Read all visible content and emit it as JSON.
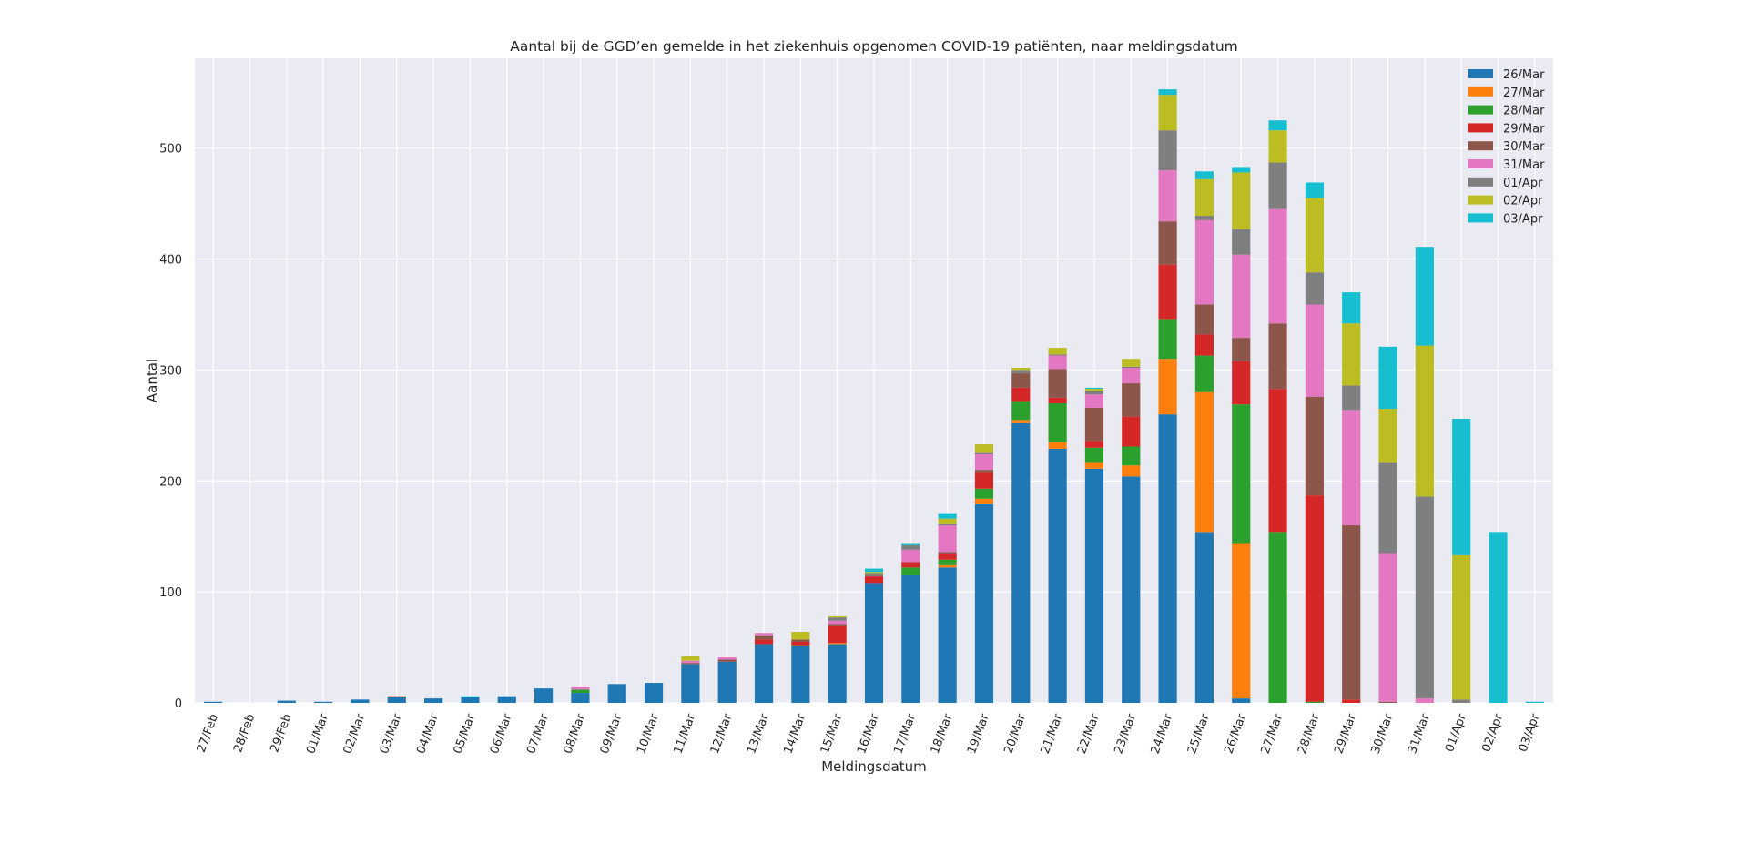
{
  "chart_data": {
    "type": "bar",
    "stacked": true,
    "title": "Aantal bij de GGD’en gemelde in het ziekenhuis opgenomen COVID-19 patiënten, naar meldingsdatum",
    "xlabel": "Meldingsdatum",
    "ylabel": "Aantal",
    "ylim": [
      0,
      581
    ],
    "yticks": [
      0,
      100,
      200,
      300,
      400,
      500
    ],
    "grid": true,
    "legend_position": "top-right",
    "categories": [
      "27/Feb",
      "28/Feb",
      "29/Feb",
      "01/Mar",
      "02/Mar",
      "03/Mar",
      "04/Mar",
      "05/Mar",
      "06/Mar",
      "07/Mar",
      "08/Mar",
      "09/Mar",
      "10/Mar",
      "11/Mar",
      "12/Mar",
      "13/Mar",
      "14/Mar",
      "15/Mar",
      "16/Mar",
      "17/Mar",
      "18/Mar",
      "19/Mar",
      "20/Mar",
      "21/Mar",
      "22/Mar",
      "23/Mar",
      "24/Mar",
      "25/Mar",
      "26/Mar",
      "27/Mar",
      "28/Mar",
      "29/Mar",
      "30/Mar",
      "31/Mar",
      "01/Apr",
      "02/Apr",
      "03/Apr"
    ],
    "series": [
      {
        "name": "26/Mar",
        "color": "#1f77b4",
        "values": [
          1,
          0,
          2,
          1,
          3,
          5,
          4,
          5,
          6,
          13,
          9,
          17,
          18,
          35,
          37,
          53,
          51,
          53,
          108,
          115,
          122,
          179,
          252,
          229,
          211,
          204,
          260,
          154,
          4,
          0,
          0,
          0,
          0,
          0,
          0,
          0,
          0
        ]
      },
      {
        "name": "27/Mar",
        "color": "#ff7f0e",
        "values": [
          0,
          0,
          0,
          0,
          0,
          0,
          0,
          0,
          0,
          0,
          0,
          0,
          0,
          0,
          0,
          0,
          0,
          1,
          0,
          0,
          2,
          5,
          3,
          6,
          6,
          10,
          50,
          126,
          140,
          0,
          0,
          0,
          0,
          0,
          0,
          0,
          0
        ]
      },
      {
        "name": "28/Mar",
        "color": "#2ca02c",
        "values": [
          0,
          0,
          0,
          0,
          0,
          0,
          0,
          0,
          0,
          0,
          3,
          0,
          0,
          0,
          0,
          0,
          1,
          0,
          0,
          7,
          5,
          9,
          17,
          35,
          13,
          17,
          36,
          33,
          125,
          154,
          1,
          0,
          0,
          0,
          0,
          0,
          0
        ]
      },
      {
        "name": "29/Mar",
        "color": "#d62728",
        "values": [
          0,
          0,
          0,
          0,
          0,
          1,
          0,
          0,
          0,
          0,
          0,
          0,
          0,
          0,
          0,
          4,
          3,
          15,
          6,
          5,
          5,
          15,
          12,
          5,
          6,
          27,
          49,
          19,
          39,
          129,
          186,
          3,
          0,
          0,
          0,
          0,
          0
        ]
      },
      {
        "name": "30/Mar",
        "color": "#8c564b",
        "values": [
          0,
          0,
          0,
          0,
          0,
          0,
          0,
          0,
          0,
          0,
          0,
          0,
          0,
          1,
          2,
          4,
          2,
          2,
          0,
          0,
          2,
          2,
          13,
          26,
          30,
          30,
          39,
          27,
          21,
          59,
          89,
          157,
          1,
          0,
          0,
          0,
          0
        ]
      },
      {
        "name": "31/Mar",
        "color": "#e377c2",
        "values": [
          0,
          0,
          0,
          0,
          0,
          0,
          0,
          0,
          0,
          0,
          2,
          0,
          0,
          2,
          2,
          2,
          0,
          3,
          0,
          11,
          24,
          14,
          0,
          12,
          12,
          14,
          46,
          76,
          75,
          103,
          83,
          104,
          134,
          4,
          0,
          0,
          0
        ]
      },
      {
        "name": "01/Apr",
        "color": "#7f7f7f",
        "values": [
          0,
          0,
          0,
          0,
          0,
          0,
          0,
          0,
          0,
          0,
          0,
          0,
          0,
          0,
          0,
          0,
          0,
          3,
          3,
          4,
          1,
          2,
          3,
          1,
          3,
          1,
          36,
          4,
          23,
          42,
          29,
          22,
          82,
          182,
          3,
          0,
          0
        ]
      },
      {
        "name": "02/Apr",
        "color": "#bcbd22",
        "values": [
          0,
          0,
          0,
          0,
          0,
          0,
          0,
          0,
          0,
          0,
          0,
          0,
          0,
          4,
          0,
          0,
          7,
          1,
          1,
          0,
          5,
          7,
          2,
          6,
          2,
          7,
          32,
          33,
          51,
          29,
          67,
          56,
          48,
          136,
          130,
          0,
          0
        ]
      },
      {
        "name": "03/Apr",
        "color": "#17becf",
        "values": [
          0,
          0,
          0,
          0,
          0,
          0,
          0,
          1,
          0,
          0,
          0,
          0,
          0,
          0,
          0,
          0,
          0,
          0,
          3,
          2,
          5,
          0,
          0,
          0,
          1,
          0,
          5,
          7,
          5,
          9,
          14,
          28,
          56,
          89,
          123,
          154,
          1
        ]
      }
    ]
  }
}
